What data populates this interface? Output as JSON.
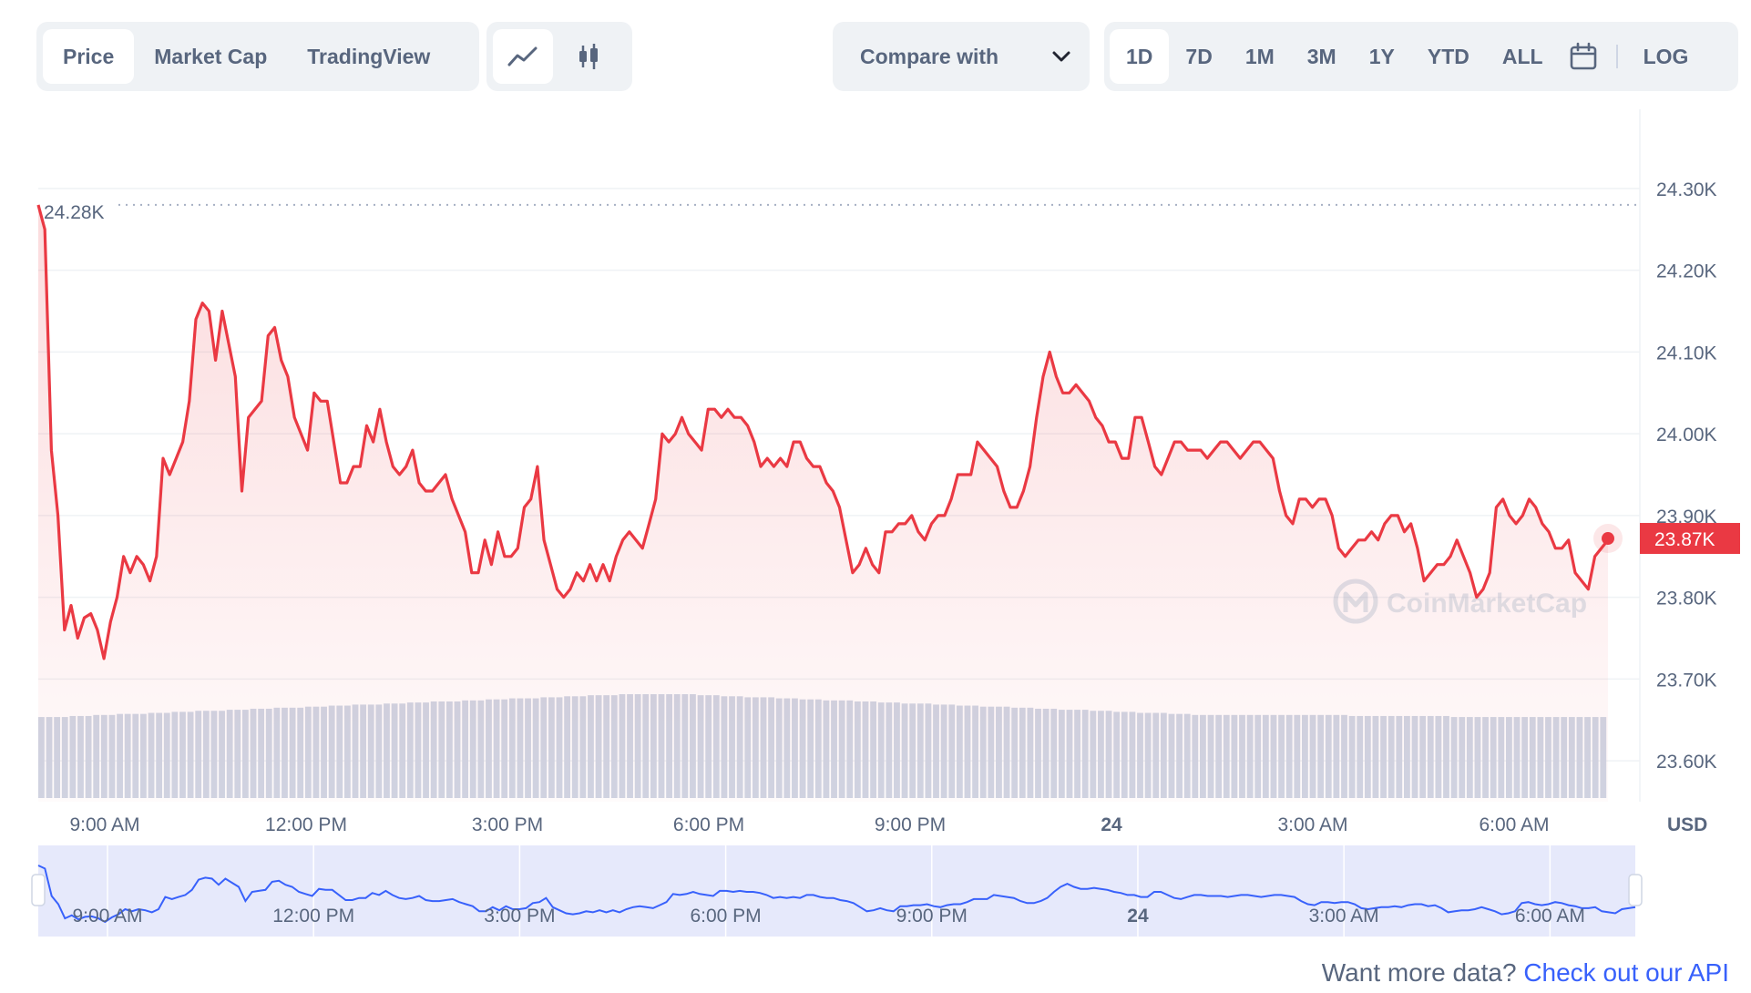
{
  "toolbar": {
    "views": [
      "Price",
      "Market Cap",
      "TradingView"
    ],
    "active_view": "Price",
    "chart_types": [
      {
        "icon": "line-chart-icon",
        "active": true
      },
      {
        "icon": "candlestick-icon",
        "active": false
      }
    ],
    "compare_label": "Compare with",
    "ranges": [
      "1D",
      "7D",
      "1M",
      "3M",
      "1Y",
      "YTD",
      "ALL"
    ],
    "active_range": "1D",
    "log_label": "LOG"
  },
  "footer": {
    "prompt": "Want more data?",
    "link": "Check out our API"
  },
  "watermark": "CoinMarketCap",
  "colors": {
    "line": "#ea3943",
    "accent": "#3861fb",
    "volume": "#cfd6e4",
    "navigator_fill": "#e6e9fb"
  },
  "chart_data": {
    "type": "line",
    "ylabel": "USD",
    "ylim": [
      23550,
      24330
    ],
    "y_ticks": [
      "24.30K",
      "24.20K",
      "24.10K",
      "24.00K",
      "23.90K",
      "23.80K",
      "23.70K",
      "23.60K"
    ],
    "x_ticks": [
      "9:00 AM",
      "12:00 PM",
      "3:00 PM",
      "6:00 PM",
      "9:00 PM",
      "24",
      "3:00 AM",
      "6:00 AM"
    ],
    "high_label": "24.28K",
    "high_value": 24280,
    "current_label": "23.87K",
    "current_value": 23872,
    "grid": true,
    "series": [
      {
        "values": [
          24280,
          24250,
          23980,
          23900,
          23760,
          23790,
          23750,
          23775,
          23780,
          23760,
          23725,
          23770,
          23800,
          23850,
          23830,
          23850,
          23840,
          23820,
          23850,
          23970,
          23950,
          23970,
          23990,
          24040,
          24140,
          24160,
          24150,
          24090,
          24150,
          24110,
          24070,
          23930,
          24020,
          24030,
          24040,
          24120,
          24130,
          24090,
          24070,
          24020,
          24000,
          23980,
          24050,
          24040,
          24040,
          23990,
          23940,
          23940,
          23960,
          23960,
          24010,
          23990,
          24030,
          23990,
          23960,
          23950,
          23960,
          23980,
          23940,
          23930,
          23930,
          23940,
          23950,
          23920,
          23900,
          23880,
          23830,
          23830,
          23870,
          23840,
          23880,
          23850,
          23850,
          23860,
          23910,
          23920,
          23960,
          23870,
          23840,
          23810,
          23800,
          23810,
          23830,
          23820,
          23840,
          23820,
          23840,
          23820,
          23850,
          23870,
          23880,
          23870,
          23860,
          23890,
          23920,
          24000,
          23990,
          24000,
          24020,
          24000,
          23990,
          23980,
          24030,
          24030,
          24020,
          24030,
          24020,
          24020,
          24010,
          23990,
          23960,
          23970,
          23960,
          23970,
          23960,
          23990,
          23990,
          23970,
          23960,
          23960,
          23940,
          23930,
          23910,
          23870,
          23830,
          23840,
          23860,
          23840,
          23830,
          23880,
          23880,
          23890,
          23890,
          23900,
          23880,
          23870,
          23890,
          23900,
          23900,
          23920,
          23950,
          23950,
          23950,
          23990,
          23980,
          23970,
          23960,
          23930,
          23910,
          23910,
          23930,
          23960,
          24020,
          24070,
          24100,
          24070,
          24050,
          24050,
          24060,
          24050,
          24040,
          24020,
          24010,
          23990,
          23990,
          23970,
          23970,
          24020,
          24020,
          23990,
          23960,
          23950,
          23970,
          23990,
          23990,
          23980,
          23980,
          23980,
          23970,
          23980,
          23990,
          23990,
          23980,
          23970,
          23980,
          23990,
          23990,
          23980,
          23970,
          23930,
          23900,
          23890,
          23920,
          23920,
          23910,
          23920,
          23920,
          23900,
          23860,
          23850,
          23860,
          23870,
          23870,
          23880,
          23870,
          23890,
          23900,
          23900,
          23880,
          23890,
          23860,
          23820,
          23830,
          23840,
          23840,
          23850,
          23870,
          23850,
          23830,
          23800,
          23810,
          23830,
          23910,
          23920,
          23900,
          23890,
          23900,
          23920,
          23910,
          23890,
          23880,
          23860,
          23860,
          23870,
          23830,
          23820,
          23810,
          23850,
          23860,
          23870
        ]
      }
    ],
    "volume": [
      0.78,
      0.79,
      0.8,
      0.81,
      0.82,
      0.83,
      0.84,
      0.85,
      0.86,
      0.87,
      0.88,
      0.89,
      0.9,
      0.91,
      0.92,
      0.93,
      0.94,
      0.95,
      0.96,
      0.97,
      0.98,
      0.99,
      1.0,
      1.0,
      1.0,
      0.99,
      0.98,
      0.97,
      0.96,
      0.95,
      0.94,
      0.93,
      0.92,
      0.91,
      0.9,
      0.89,
      0.88,
      0.87,
      0.86,
      0.85,
      0.84,
      0.83,
      0.82,
      0.81,
      0.8,
      0.8,
      0.8,
      0.8,
      0.8,
      0.8,
      0.79,
      0.79,
      0.79,
      0.79,
      0.78,
      0.78,
      0.78,
      0.78,
      0.78,
      0.78
    ],
    "navigator_ticks": [
      "9:00 AM",
      "12:00 PM",
      "3:00 PM",
      "6:00 PM",
      "9:00 PM",
      "24",
      "3:00 AM",
      "6:00 AM"
    ]
  }
}
